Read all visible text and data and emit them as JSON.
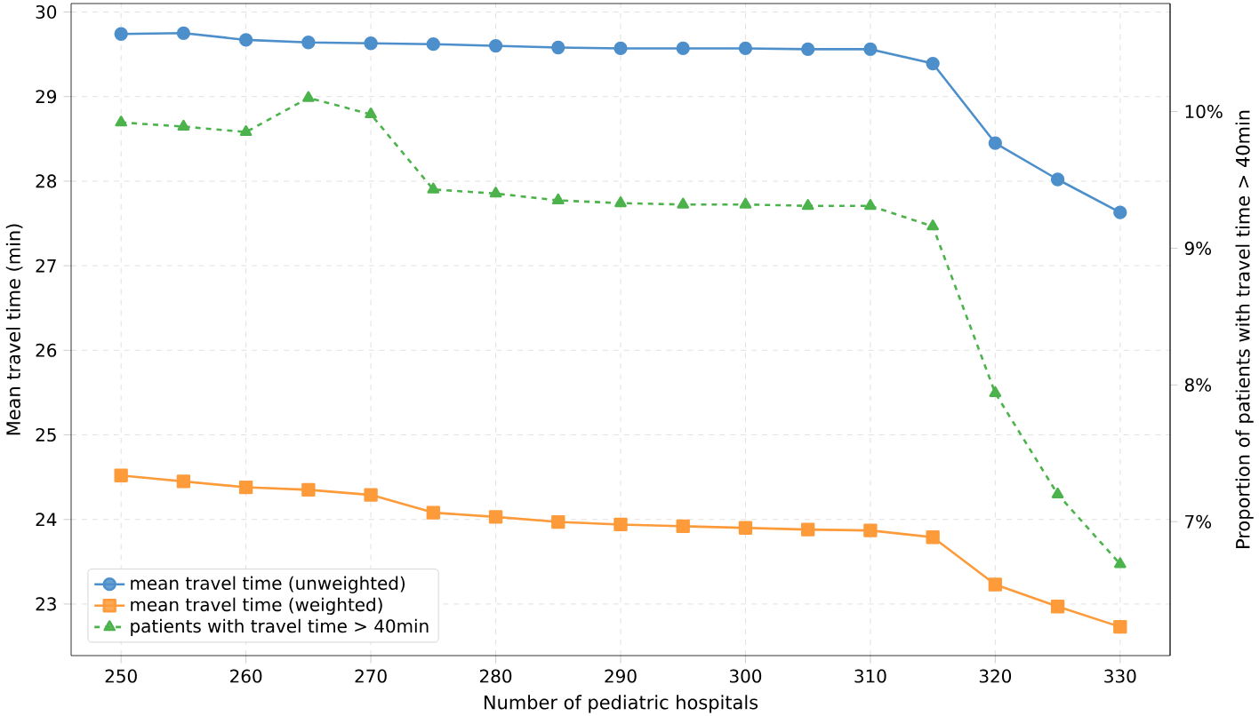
{
  "chart_data": {
    "type": "line",
    "xlabel": "Number of pediatric hospitals",
    "ylabel": "Mean travel time (min)",
    "y2label": "Proportion of patients with travel time > 40min",
    "x": [
      250,
      255,
      260,
      265,
      270,
      275,
      280,
      285,
      290,
      295,
      300,
      305,
      310,
      315,
      320,
      325,
      330
    ],
    "series": [
      {
        "name": "mean travel time (unweighted)",
        "color": "#4c8fcb",
        "marker": "circle",
        "line_style": "solid",
        "values": [
          29.74,
          29.75,
          29.67,
          29.64,
          29.63,
          29.62,
          29.6,
          29.58,
          29.57,
          29.57,
          29.57,
          29.56,
          29.56,
          29.39,
          28.45,
          28.02,
          27.63
        ]
      },
      {
        "name": "mean travel time (weighted)",
        "color": "#fd9a3a",
        "marker": "square",
        "line_style": "solid",
        "values": [
          24.52,
          24.45,
          24.38,
          24.35,
          24.29,
          24.08,
          24.03,
          23.97,
          23.94,
          23.92,
          23.9,
          23.88,
          23.87,
          23.79,
          23.23,
          22.97,
          22.73
        ]
      },
      {
        "name": "patients with travel time > 40min",
        "color": "#4cb34c",
        "marker": "triangle",
        "line_style": "dashed",
        "axis": "y2",
        "values": [
          9.92,
          9.89,
          9.85,
          10.1,
          9.98,
          9.43,
          9.4,
          9.35,
          9.33,
          9.32,
          9.32,
          9.31,
          9.31,
          9.16,
          7.94,
          7.2,
          6.69
        ]
      }
    ],
    "xlim": [
      246,
      334
    ],
    "ylim": [
      22.39,
      30.1
    ],
    "y2lim": [
      6.02,
      10.79
    ],
    "xticks": [
      250,
      260,
      270,
      280,
      290,
      300,
      310,
      320,
      330
    ],
    "yticks": [
      23,
      24,
      25,
      26,
      27,
      28,
      29,
      30
    ],
    "y2ticks": [
      {
        "value": 7,
        "label": "7%"
      },
      {
        "value": 8,
        "label": "8%"
      },
      {
        "value": 9,
        "label": "9%"
      },
      {
        "value": 10,
        "label": "10%"
      }
    ],
    "grid": true,
    "legend": "bottom left"
  }
}
